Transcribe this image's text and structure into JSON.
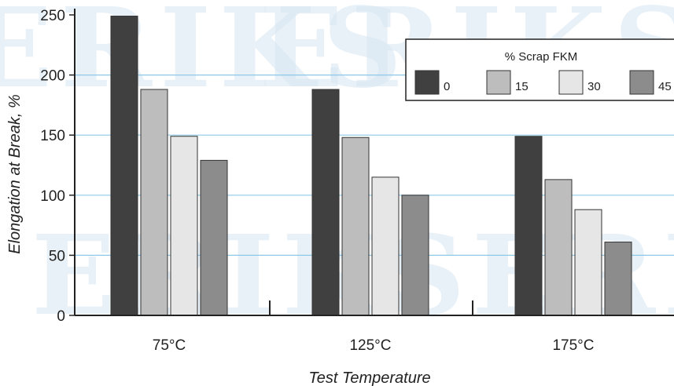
{
  "watermark": {
    "text": "ERIKS"
  },
  "chart_data": {
    "type": "bar",
    "categories": [
      "75°C",
      "125°C",
      "175°C"
    ],
    "series": [
      {
        "name": "0",
        "color": "#404040",
        "values": [
          249,
          188,
          149
        ]
      },
      {
        "name": "15",
        "color": "#bdbdbd",
        "values": [
          188,
          148,
          113
        ]
      },
      {
        "name": "30",
        "color": "#e6e6e6",
        "values": [
          149,
          115,
          88
        ]
      },
      {
        "name": "45",
        "color": "#8c8c8c",
        "values": [
          129,
          100,
          61
        ]
      }
    ],
    "title": "",
    "xlabel": "Test Temperature",
    "ylabel": "Elongation at Break, %",
    "ylim": [
      0,
      250
    ],
    "yticks": [
      "0",
      "50",
      "100",
      "150",
      "200",
      "250"
    ],
    "grid": true,
    "gridline_color": "#8ec8e8",
    "legend": {
      "title": "% Scrap FKM",
      "position": "top-right"
    }
  }
}
